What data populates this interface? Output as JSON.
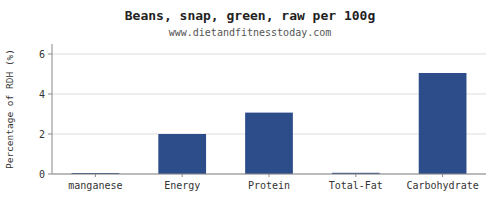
{
  "chart_data": {
    "type": "bar",
    "title": "Beans, snap, green, raw per 100g",
    "subtitle": "www.dietandfitnesstoday.com",
    "ylabel": "Percentage of RDH (%)",
    "categories": [
      "manganese",
      "Energy",
      "Protein",
      "Total-Fat",
      "Carbohydrate"
    ],
    "values": [
      0.05,
      2.0,
      3.07,
      0.06,
      5.05
    ],
    "color": "#2d4d8a",
    "ylim": [
      0,
      6.5
    ],
    "yticks": [
      0,
      2,
      4,
      6
    ],
    "grid": true
  }
}
